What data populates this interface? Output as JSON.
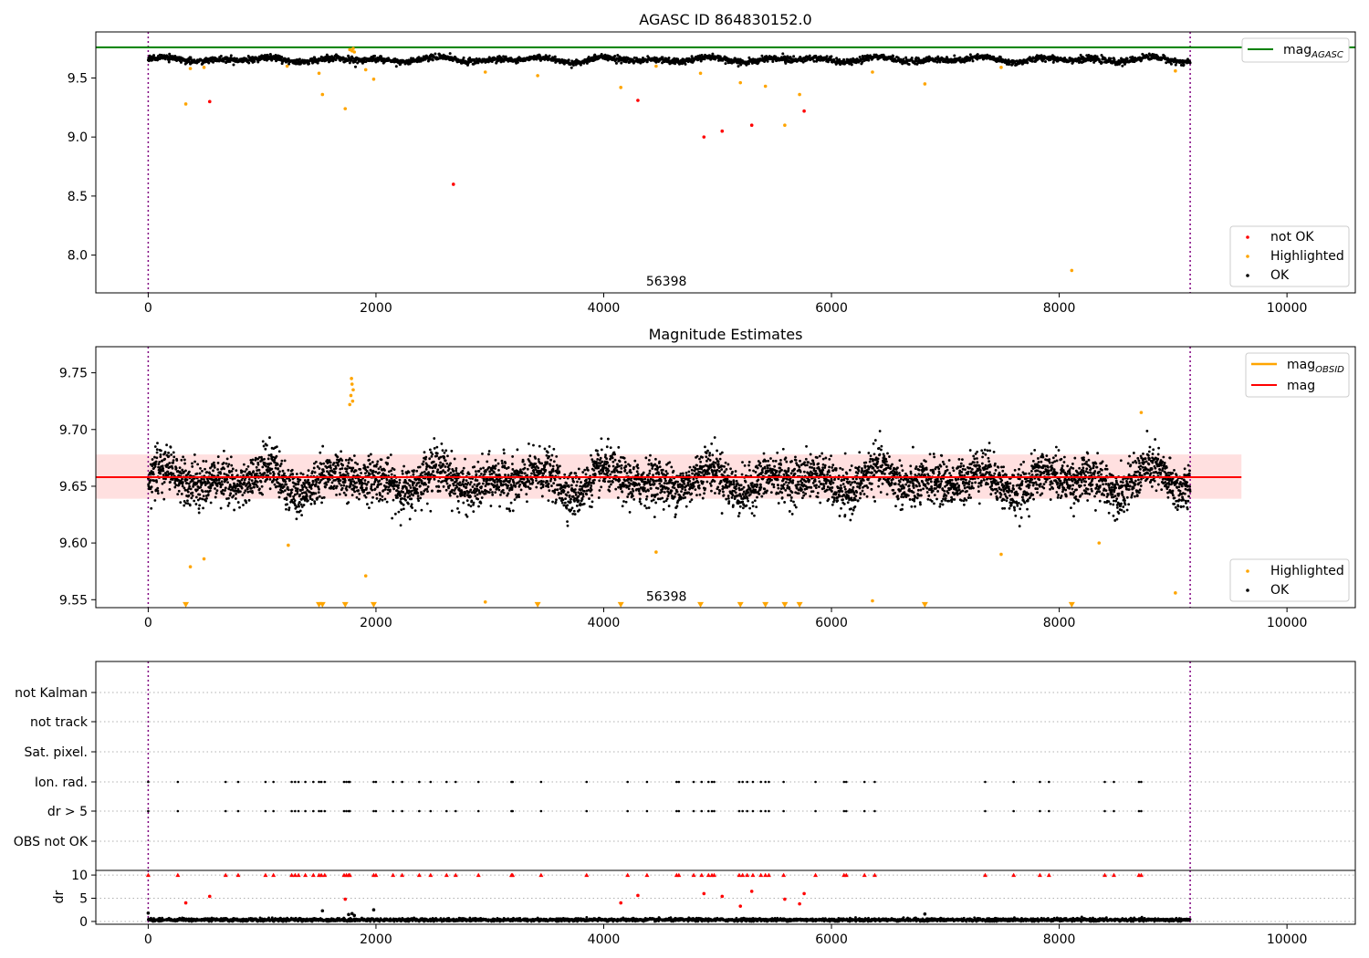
{
  "chart_data": [
    {
      "type": "scatter",
      "title": "AGASC ID 864830152.0",
      "xlabel": "",
      "ylabel": "",
      "xlim": [
        -460,
        10600
      ],
      "ylim": [
        7.68,
        9.89
      ],
      "xticks": [
        0,
        2000,
        4000,
        6000,
        8000,
        10000
      ],
      "yticks": [
        8.0,
        8.5,
        9.0,
        9.5
      ],
      "ytick_labels": [
        "8.0",
        "8.5",
        "9.0",
        "9.5"
      ],
      "hline": {
        "name": "mag$_{AGASC}$",
        "label_main": "mag",
        "label_sub": "AGASC",
        "y": 9.76,
        "color": "#008000"
      },
      "obsid_text": "56398",
      "obsid_text_at": [
        4550,
        7.78
      ],
      "vlines": [
        0,
        9150
      ],
      "legend_top": {
        "placement": "top-right",
        "entries": [
          {
            "label_main": "mag",
            "label_sub": "AGASC",
            "color": "#008000"
          }
        ]
      },
      "legend_bottom": {
        "placement": "lower-right",
        "entries": [
          {
            "label": "not OK",
            "color": "#ff0000"
          },
          {
            "label": "Highlighted",
            "color": "#ffa500"
          },
          {
            "label": "OK",
            "color": "#000000"
          }
        ]
      },
      "ok_band": {
        "center": 9.655,
        "amp": 0.025,
        "noise": 0.018,
        "x_range": [
          0,
          9150
        ]
      },
      "series": [
        {
          "name": "not OK",
          "color": "#ff0000",
          "x": [
            540,
            2680,
            4300,
            4880,
            5040,
            5300,
            5760
          ],
          "y": [
            9.3,
            8.6,
            9.31,
            9.0,
            9.05,
            9.1,
            9.22
          ]
        },
        {
          "name": "Highlighted",
          "color": "#ffa500",
          "x": [
            330,
            370,
            490,
            1220,
            1500,
            1530,
            1730,
            1770,
            1790,
            1800,
            1810,
            1910,
            1980,
            2960,
            3420,
            4150,
            4460,
            4850,
            5200,
            5420,
            5590,
            5720,
            6360,
            6820,
            7490,
            8110,
            9020
          ],
          "y": [
            9.28,
            9.58,
            9.59,
            9.6,
            9.54,
            9.36,
            9.24,
            9.74,
            9.73,
            9.75,
            9.72,
            9.57,
            9.49,
            9.55,
            9.52,
            9.42,
            9.6,
            9.54,
            9.46,
            9.43,
            9.1,
            9.36,
            9.55,
            9.45,
            9.59,
            7.87,
            9.56
          ]
        }
      ]
    },
    {
      "type": "scatter",
      "title": "Magnitude Estimates",
      "xlabel": "",
      "ylabel": "",
      "xlim": [
        -460,
        10600
      ],
      "ylim": [
        9.543,
        9.773
      ],
      "xticks": [
        0,
        2000,
        4000,
        6000,
        8000,
        10000
      ],
      "yticks": [
        9.55,
        9.6,
        9.65,
        9.7,
        9.75
      ],
      "ytick_labels": [
        "9.55",
        "9.60",
        "9.65",
        "9.70",
        "9.75"
      ],
      "mag_line": {
        "label": "mag",
        "y": 9.658,
        "color": "#ff0000",
        "band": [
          9.639,
          9.678
        ],
        "band_x": [
          -460,
          9600
        ]
      },
      "obsid_text": "56398",
      "obsid_text_at": [
        4550,
        9.553
      ],
      "vlines": [
        0,
        9150
      ],
      "legend_top": {
        "placement": "top-right",
        "entries": [
          {
            "label_main": "mag",
            "label_sub": "OBSID",
            "color": "#ffa500"
          },
          {
            "label": "mag",
            "color": "#ff0000"
          }
        ]
      },
      "legend_bottom": {
        "placement": "lower-right",
        "entries": [
          {
            "label": "Highlighted",
            "color": "#ffa500"
          },
          {
            "label": "OK",
            "color": "#000000"
          }
        ]
      },
      "ok_band": {
        "center": 9.655,
        "amp": 0.012,
        "noise": 0.014,
        "x_range": [
          0,
          9150
        ]
      },
      "series": [
        {
          "name": "Highlighted",
          "color": "#ffa500",
          "x": [
            370,
            490,
            1230,
            1910,
            2960,
            4460,
            6360,
            7490,
            8350,
            8720,
            9020,
            1770,
            1780,
            1790,
            1800,
            1785,
            1795
          ],
          "y": [
            9.579,
            9.586,
            9.598,
            9.571,
            9.548,
            9.592,
            9.549,
            9.59,
            9.6,
            9.715,
            9.556,
            9.722,
            9.73,
            9.74,
            9.735,
            9.745,
            9.725
          ]
        },
        {
          "name": "Highlighted (below axis)",
          "color": "#ffa500",
          "marker": "triangle-down",
          "x": [
            330,
            1500,
            1530,
            1730,
            1980,
            3420,
            4150,
            4850,
            5200,
            5420,
            5590,
            5720,
            6820,
            8110
          ],
          "y": [
            9.5455,
            9.5455,
            9.5455,
            9.5455,
            9.5455,
            9.5455,
            9.5455,
            9.5455,
            9.5455,
            9.5455,
            9.5455,
            9.5455,
            9.5455,
            9.5455
          ]
        }
      ]
    },
    {
      "type": "scatter",
      "title": "",
      "xlabel": "",
      "ylabel": "",
      "xlim": [
        -460,
        10600
      ],
      "categories": [
        "not Kalman",
        "not track",
        "Sat. pixel.",
        "Ion. rad.",
        "dr > 5",
        "OBS not OK"
      ],
      "flag_times": [
        0,
        260,
        680,
        790,
        1030,
        1100,
        1260,
        1290,
        1320,
        1380,
        1450,
        1500,
        1520,
        1550,
        1720,
        1740,
        1760,
        1770,
        1980,
        2000,
        2150,
        2230,
        2380,
        2480,
        2620,
        2700,
        2900,
        3190,
        3200,
        3450,
        3850,
        4210,
        4380,
        4640,
        4660,
        4790,
        4860,
        4920,
        4950,
        4970,
        5190,
        5220,
        5260,
        5310,
        5380,
        5420,
        5450,
        5580,
        5860,
        6110,
        6130,
        6290,
        6380,
        7350,
        7600,
        7830,
        7910,
        8400,
        8480,
        8700,
        8720
      ],
      "flag_rows": [
        "Ion. rad.",
        "dr > 5"
      ],
      "vlines": [
        0,
        9150
      ]
    },
    {
      "type": "scatter",
      "title": "",
      "xlabel": "",
      "ylabel": "dr",
      "xlim": [
        -460,
        10600
      ],
      "ylim": [
        -0.6,
        11
      ],
      "yticks": [
        0,
        5,
        10
      ],
      "ytick_labels": [
        "0",
        "5",
        "10"
      ],
      "base_band": {
        "center": 0.35,
        "noise": 0.3,
        "x_range": [
          0,
          9150
        ]
      },
      "clip_value": 10,
      "vlines": [
        0,
        9150
      ],
      "series": [
        {
          "name": "not OK",
          "color": "#ff0000",
          "x": [
            330,
            540,
            1730,
            4150,
            4300,
            4880,
            5040,
            5200,
            5300,
            5590,
            5720,
            5760
          ],
          "y": [
            4.0,
            5.4,
            4.8,
            4.0,
            5.6,
            6.0,
            5.4,
            3.3,
            6.5,
            4.8,
            3.8,
            6.0
          ]
        },
        {
          "name": "OK outliers",
          "color": "#000000",
          "x": [
            0,
            1530,
            1980,
            1760,
            1790,
            6820,
            1810
          ],
          "y": [
            1.8,
            2.3,
            2.5,
            1.5,
            1.7,
            1.6,
            1.3
          ]
        }
      ]
    }
  ]
}
